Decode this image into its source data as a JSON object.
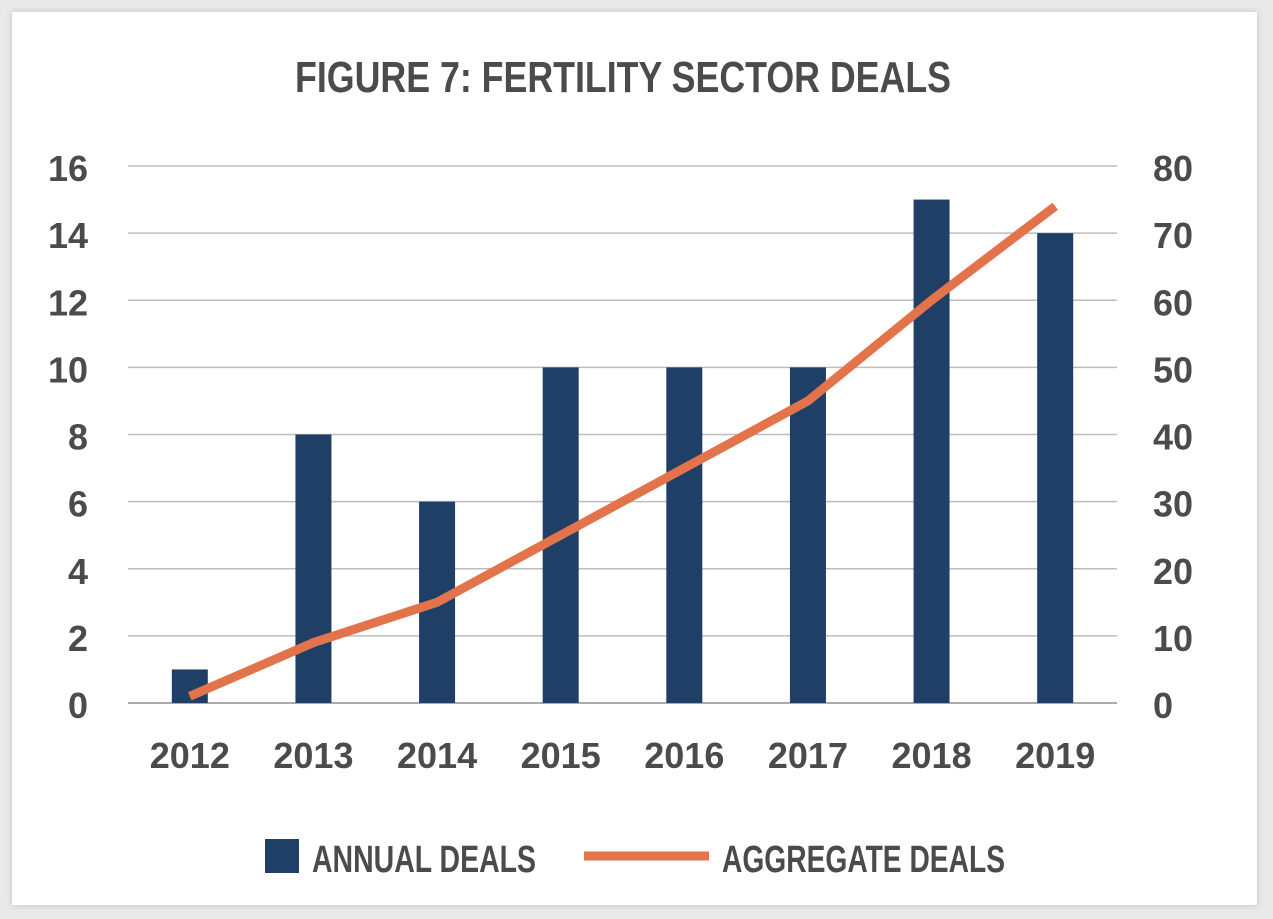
{
  "chart_data": {
    "type": "bar",
    "title": "FIGURE 7: FERTILITY SECTOR DEALS",
    "categories": [
      "2012",
      "2013",
      "2014",
      "2015",
      "2016",
      "2017",
      "2018",
      "2019"
    ],
    "series": [
      {
        "name": "ANNUAL DEALS",
        "type": "bar",
        "axis": "left",
        "color": "#1f3f66",
        "values": [
          1,
          8,
          6,
          10,
          10,
          10,
          15,
          14
        ]
      },
      {
        "name": "AGGREGATE DEALS",
        "type": "line",
        "axis": "right",
        "color": "#e2734a",
        "values": [
          1,
          9,
          15,
          25,
          35,
          45,
          60,
          74
        ]
      }
    ],
    "y_left": {
      "ylim": [
        0,
        16
      ],
      "ticks": [
        "0",
        "2",
        "4",
        "6",
        "8",
        "10",
        "12",
        "14",
        "16"
      ]
    },
    "y_right": {
      "ylim": [
        0,
        80
      ],
      "ticks": [
        "0",
        "10",
        "20",
        "30",
        "40",
        "50",
        "60",
        "70",
        "80"
      ]
    },
    "grid": true,
    "legend_position": "bottom"
  }
}
